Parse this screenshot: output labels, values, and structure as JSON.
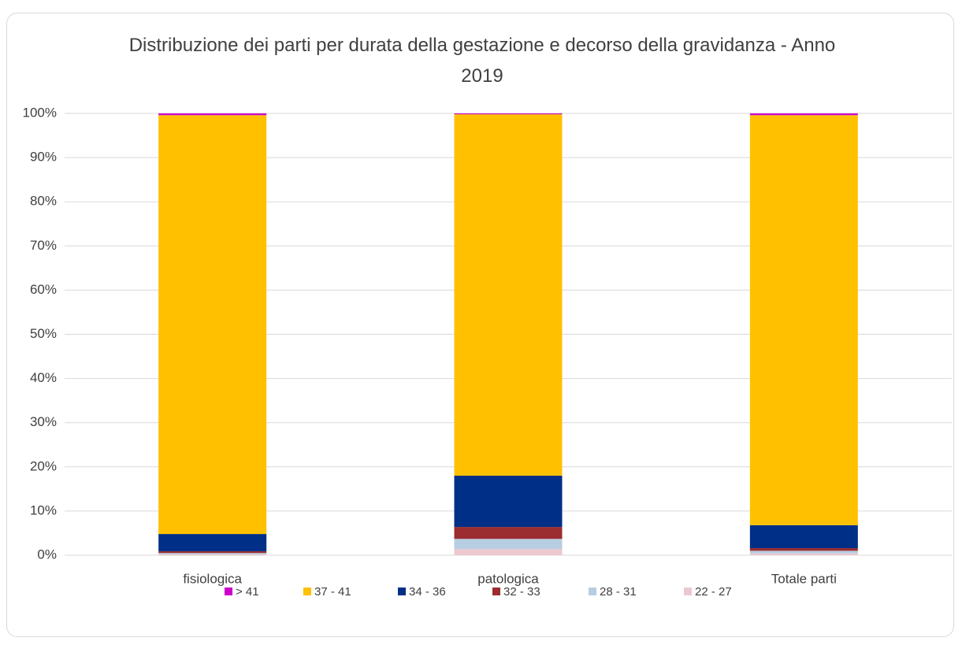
{
  "chart_data": {
    "type": "stacked_bar",
    "title": "Distribuzione dei parti per durata della gestazione e decorso della gravidanza - Anno 2019",
    "categories": [
      "fisiologica",
      "patologica",
      "Totale parti"
    ],
    "series": [
      {
        "name": "> 41",
        "color": "#cc00cc",
        "values": [
          0.4,
          0.2,
          0.4
        ]
      },
      {
        "name": "37 - 41",
        "color": "#ffc000",
        "values": [
          94.8,
          81.8,
          92.8
        ]
      },
      {
        "name": "34 - 36",
        "color": "#002f87",
        "values": [
          3.9,
          11.6,
          5.2
        ]
      },
      {
        "name": "32 - 33",
        "color": "#9b2d30",
        "values": [
          0.4,
          2.7,
          0.6
        ]
      },
      {
        "name": "28 - 31",
        "color": "#b7cde2",
        "values": [
          0.3,
          2.3,
          0.6
        ]
      },
      {
        "name": "22 - 27",
        "color": "#ecc9cf",
        "values": [
          0.2,
          1.4,
          0.4
        ]
      }
    ],
    "ylim": [
      0,
      100
    ],
    "yticks": [
      {
        "value": 0,
        "label": "0%"
      },
      {
        "value": 10,
        "label": "10%"
      },
      {
        "value": 20,
        "label": "20%"
      },
      {
        "value": 30,
        "label": "30%"
      },
      {
        "value": 40,
        "label": "40%"
      },
      {
        "value": 50,
        "label": "50%"
      },
      {
        "value": 60,
        "label": "60%"
      },
      {
        "value": 70,
        "label": "70%"
      },
      {
        "value": 80,
        "label": "80%"
      },
      {
        "value": 90,
        "label": "90%"
      },
      {
        "value": 100,
        "label": "100%"
      }
    ],
    "grid": true,
    "legend": "bottom"
  }
}
